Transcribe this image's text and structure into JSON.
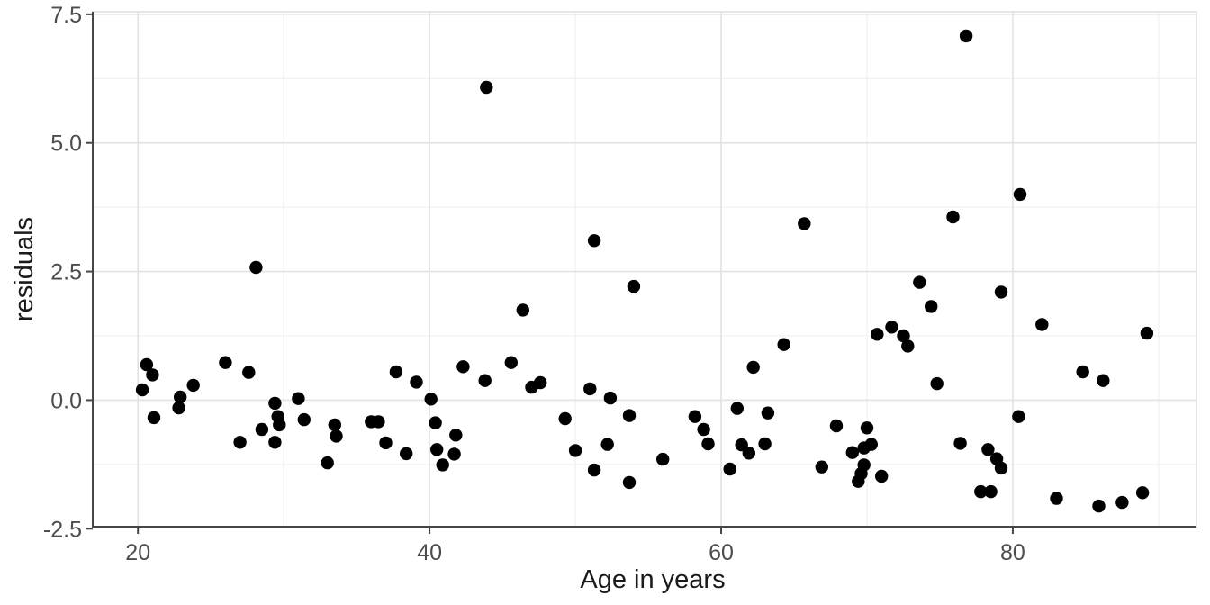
{
  "chart_data": {
    "type": "scatter",
    "title": "",
    "xlabel": "Age in years",
    "ylabel": "residuals",
    "x_ticks": [
      20,
      40,
      60,
      80
    ],
    "x_tick_labels": [
      "20",
      "40",
      "60",
      "80"
    ],
    "x_minor_ticks": [
      30,
      50,
      70,
      90
    ],
    "y_ticks": [
      -2.5,
      0.0,
      2.5,
      5.0,
      7.5
    ],
    "y_tick_labels": [
      "-2.5",
      "0.0",
      "2.5",
      "5.0",
      "7.5"
    ],
    "y_minor_ticks": [
      -1.25,
      1.25,
      3.75,
      6.25
    ],
    "xlim": [
      16.9,
      92.6
    ],
    "ylim": [
      -2.46,
      7.55
    ],
    "grid": "major and minor, light gray on white panel",
    "legend": "none",
    "points": [
      [
        20.3,
        0.2
      ],
      [
        20.6,
        0.69
      ],
      [
        21.0,
        0.49
      ],
      [
        21.1,
        -0.34
      ],
      [
        22.8,
        -0.15
      ],
      [
        22.9,
        0.06
      ],
      [
        23.8,
        0.29
      ],
      [
        26.0,
        0.73
      ],
      [
        27.0,
        -0.82
      ],
      [
        27.6,
        0.54
      ],
      [
        28.1,
        2.58
      ],
      [
        28.5,
        -0.57
      ],
      [
        29.4,
        -0.06
      ],
      [
        29.4,
        -0.82
      ],
      [
        29.6,
        -0.32
      ],
      [
        29.7,
        -0.48
      ],
      [
        31.0,
        0.03
      ],
      [
        31.4,
        -0.38
      ],
      [
        33.0,
        -1.22
      ],
      [
        33.5,
        -0.48
      ],
      [
        33.6,
        -0.7
      ],
      [
        36.0,
        -0.42
      ],
      [
        36.5,
        -0.42
      ],
      [
        37.0,
        -0.83
      ],
      [
        37.7,
        0.55
      ],
      [
        38.4,
        -1.04
      ],
      [
        39.1,
        0.35
      ],
      [
        40.1,
        0.02
      ],
      [
        40.4,
        -0.44
      ],
      [
        40.5,
        -0.96
      ],
      [
        40.9,
        -1.26
      ],
      [
        41.7,
        -1.05
      ],
      [
        41.8,
        -0.68
      ],
      [
        42.3,
        0.65
      ],
      [
        43.8,
        0.38
      ],
      [
        43.9,
        6.08
      ],
      [
        45.6,
        0.73
      ],
      [
        46.4,
        1.75
      ],
      [
        47.0,
        0.25
      ],
      [
        47.6,
        0.34
      ],
      [
        49.3,
        -0.36
      ],
      [
        50.0,
        -0.98
      ],
      [
        51.0,
        0.22
      ],
      [
        51.3,
        3.1
      ],
      [
        51.3,
        -1.36
      ],
      [
        52.2,
        -0.86
      ],
      [
        52.4,
        0.04
      ],
      [
        53.7,
        -1.6
      ],
      [
        53.7,
        -0.3
      ],
      [
        54.0,
        2.21
      ],
      [
        56.0,
        -1.15
      ],
      [
        58.2,
        -0.32
      ],
      [
        58.8,
        -0.57
      ],
      [
        59.1,
        -0.85
      ],
      [
        60.6,
        -1.34
      ],
      [
        61.1,
        -0.16
      ],
      [
        61.4,
        -0.87
      ],
      [
        61.9,
        -1.03
      ],
      [
        62.2,
        0.64
      ],
      [
        63.0,
        -0.85
      ],
      [
        63.2,
        -0.25
      ],
      [
        64.3,
        1.08
      ],
      [
        65.7,
        3.43
      ],
      [
        66.9,
        -1.3
      ],
      [
        67.9,
        -0.5
      ],
      [
        69.0,
        -1.02
      ],
      [
        69.4,
        -1.58
      ],
      [
        69.6,
        -1.43
      ],
      [
        69.8,
        -0.93
      ],
      [
        69.8,
        -1.26
      ],
      [
        70.0,
        -0.54
      ],
      [
        70.3,
        -0.86
      ],
      [
        71.0,
        -1.48
      ],
      [
        70.7,
        1.28
      ],
      [
        71.7,
        1.42
      ],
      [
        72.5,
        1.25
      ],
      [
        72.8,
        1.05
      ],
      [
        73.6,
        2.29
      ],
      [
        74.4,
        1.82
      ],
      [
        74.8,
        0.32
      ],
      [
        75.9,
        3.56
      ],
      [
        76.4,
        -0.84
      ],
      [
        76.8,
        7.08
      ],
      [
        77.8,
        -1.78
      ],
      [
        78.3,
        -0.96
      ],
      [
        78.5,
        -1.78
      ],
      [
        78.9,
        -1.14
      ],
      [
        79.2,
        -1.32
      ],
      [
        79.2,
        2.1
      ],
      [
        80.4,
        -0.32
      ],
      [
        80.5,
        4.0
      ],
      [
        82.0,
        1.47
      ],
      [
        83.0,
        -1.91
      ],
      [
        84.8,
        0.55
      ],
      [
        85.9,
        -2.06
      ],
      [
        86.2,
        0.38
      ],
      [
        87.5,
        -1.99
      ],
      [
        88.9,
        -1.8
      ],
      [
        89.2,
        1.3
      ]
    ]
  },
  "style": {
    "background": "#ffffff",
    "panel_background": "#ffffff",
    "panel_border_color": "#dedede",
    "major_grid_color": "#e2e2e2",
    "minor_grid_color": "#efefef",
    "axis_line_color": "#464646",
    "tick_mark_color": "#464646",
    "tick_label_color": "#4d4d4d",
    "axis_title_color": "#1a1a1a",
    "point_color": "#000000"
  }
}
